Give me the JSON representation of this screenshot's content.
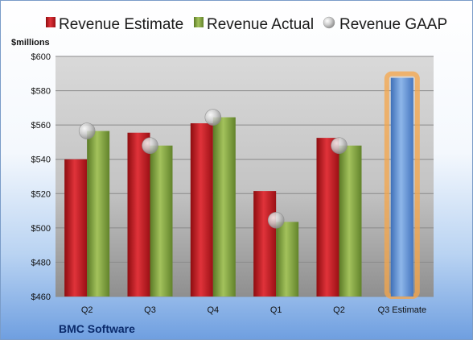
{
  "chart_data": {
    "type": "bar",
    "ylabel": "$millions",
    "company": "BMC Software",
    "categories": [
      "Q2",
      "Q3",
      "Q4",
      "Q1",
      "Q2",
      "Q3 Estimate"
    ],
    "ylim": [
      460,
      600
    ],
    "yticks": [
      460,
      480,
      500,
      520,
      540,
      560,
      580,
      600
    ],
    "ytick_labels": [
      "$460",
      "$480",
      "$500",
      "$520",
      "$540",
      "$560",
      "$580",
      "$600"
    ],
    "legend_position": "top",
    "grid": true,
    "series": [
      {
        "name": "Revenue Estimate",
        "kind": "bar",
        "color": "#c0161c",
        "values": [
          540,
          555.5,
          561,
          521.5,
          552.5,
          null
        ]
      },
      {
        "name": "Revenue Actual",
        "kind": "bar",
        "color": "#7fa03c",
        "values": [
          556.5,
          548,
          564.5,
          503.5,
          548,
          null
        ]
      },
      {
        "name": "Revenue GAAP",
        "kind": "marker",
        "color": "#b8b8b8",
        "values": [
          556.5,
          548,
          564.5,
          504.5,
          548,
          null
        ]
      },
      {
        "name": "Q3 Estimate",
        "kind": "bar",
        "color": "#5b8fd6",
        "highlight": "#f6a64a",
        "values": [
          null,
          null,
          null,
          null,
          null,
          587.5
        ]
      }
    ]
  }
}
